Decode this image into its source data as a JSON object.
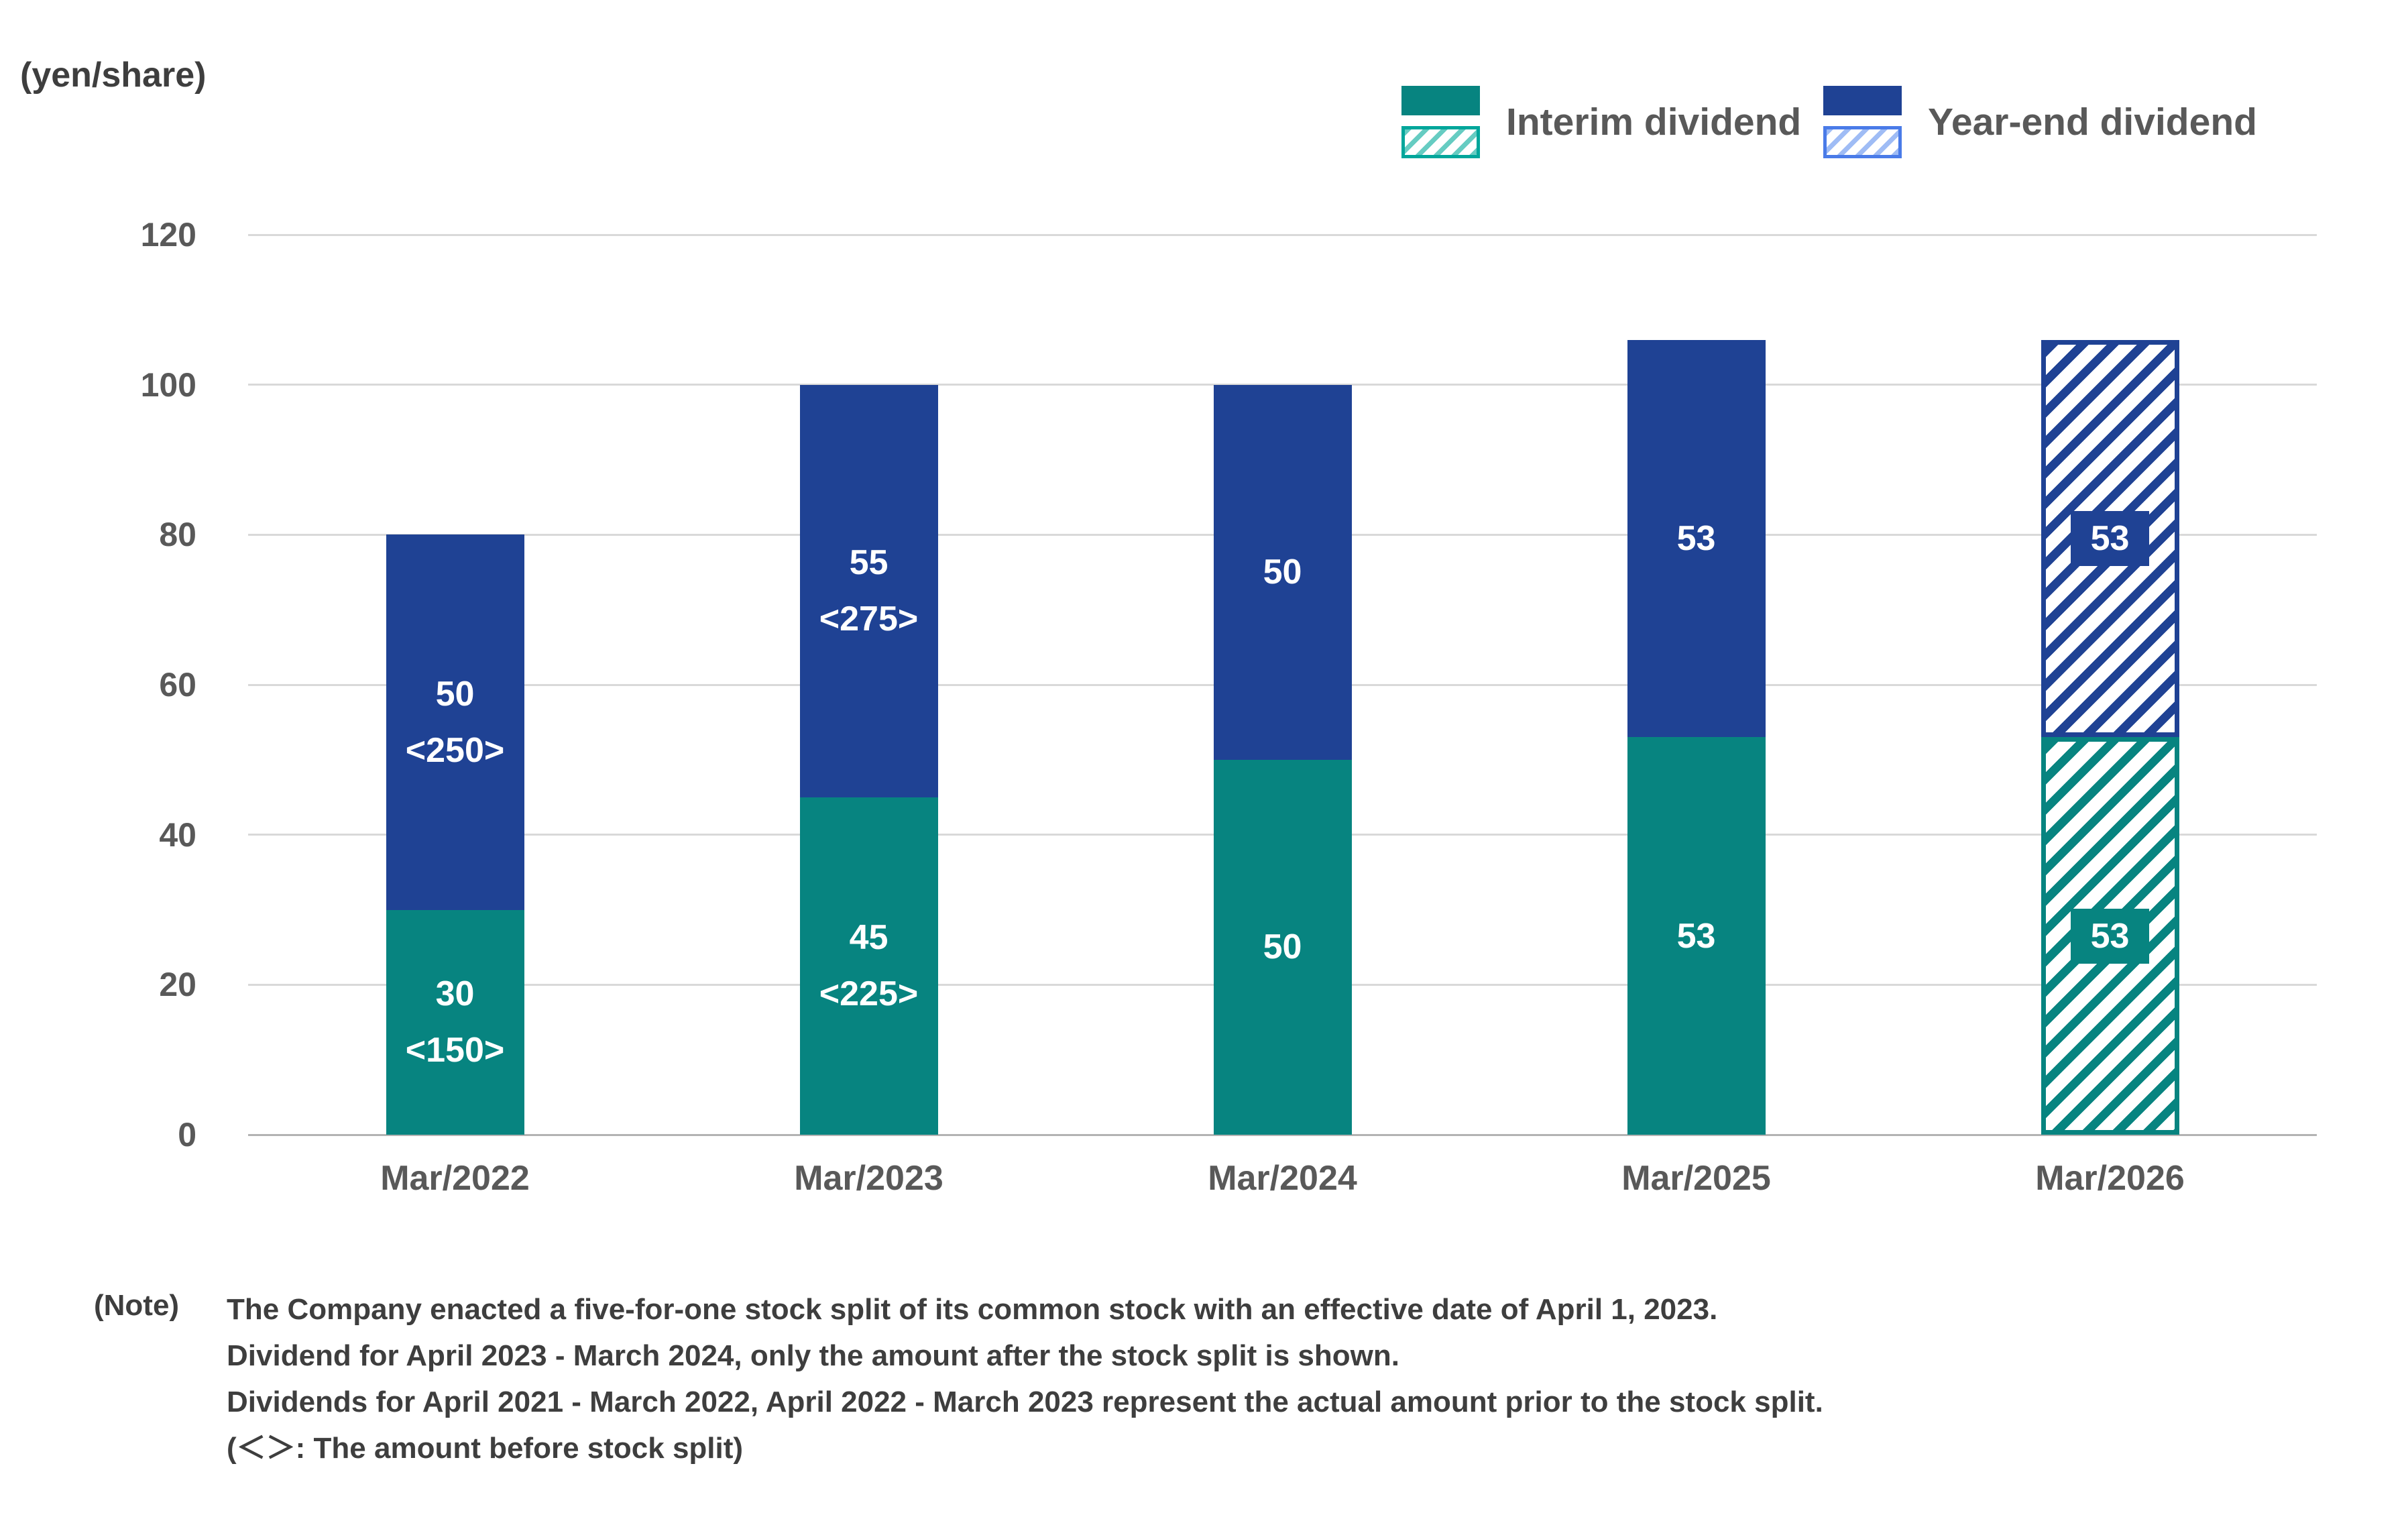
{
  "unit_label": "(yen/share)",
  "legend": {
    "interim_label": "Interim dividend",
    "yearend_label": "Year-end dividend"
  },
  "colors": {
    "interim": "#078480",
    "yearend": "#1F4294",
    "interim-hatch-border": "#00A69B",
    "interim-hatch-stripe": "#66CCC2",
    "yearend-hatch-border": "#4A7BE8",
    "yearend-hatch-stripe": "#9FBCF5",
    "gridline": "#D9D9D9",
    "axis-line": "#B3B3B3"
  },
  "chart_data": {
    "type": "bar",
    "stacked": true,
    "title": "",
    "ylabel": "(yen/share)",
    "xlabel": "",
    "categories": [
      "Mar/2022",
      "Mar/2023",
      "Mar/2024",
      "Mar/2025",
      "Mar/2026"
    ],
    "series": [
      {
        "name": "Interim dividend",
        "values": [
          30,
          45,
          50,
          53,
          53
        ],
        "labels": [
          [
            "30",
            "<150>"
          ],
          [
            "45",
            "<225>"
          ],
          [
            "50"
          ],
          [
            "53"
          ],
          [
            "53"
          ]
        ]
      },
      {
        "name": "Year-end dividend",
        "values": [
          50,
          55,
          50,
          53,
          53
        ],
        "labels": [
          [
            "50",
            "<250>"
          ],
          [
            "55",
            "<275>"
          ],
          [
            "50"
          ],
          [
            "53"
          ],
          [
            "53"
          ]
        ]
      }
    ],
    "totals": [
      80,
      100,
      100,
      106,
      106
    ],
    "hatched_categories": [
      "Mar/2026"
    ],
    "yticks": [
      0,
      20,
      40,
      60,
      80,
      100,
      120
    ],
    "ylim": [
      0,
      120
    ],
    "grid": true,
    "legend_position": "top-right"
  },
  "note": {
    "label": "(Note)",
    "lines": [
      "The Company enacted a five-for-one stock split of its common stock with an effective date of April 1, 2023.",
      "Dividend for April 2023 - March 2024, only the amount after the stock split is shown.",
      "Dividends for April 2021 - March 2022, April 2022 - March 2023 represent the actual amount prior to the stock split.",
      "(＜＞: The amount before stock split)"
    ]
  }
}
